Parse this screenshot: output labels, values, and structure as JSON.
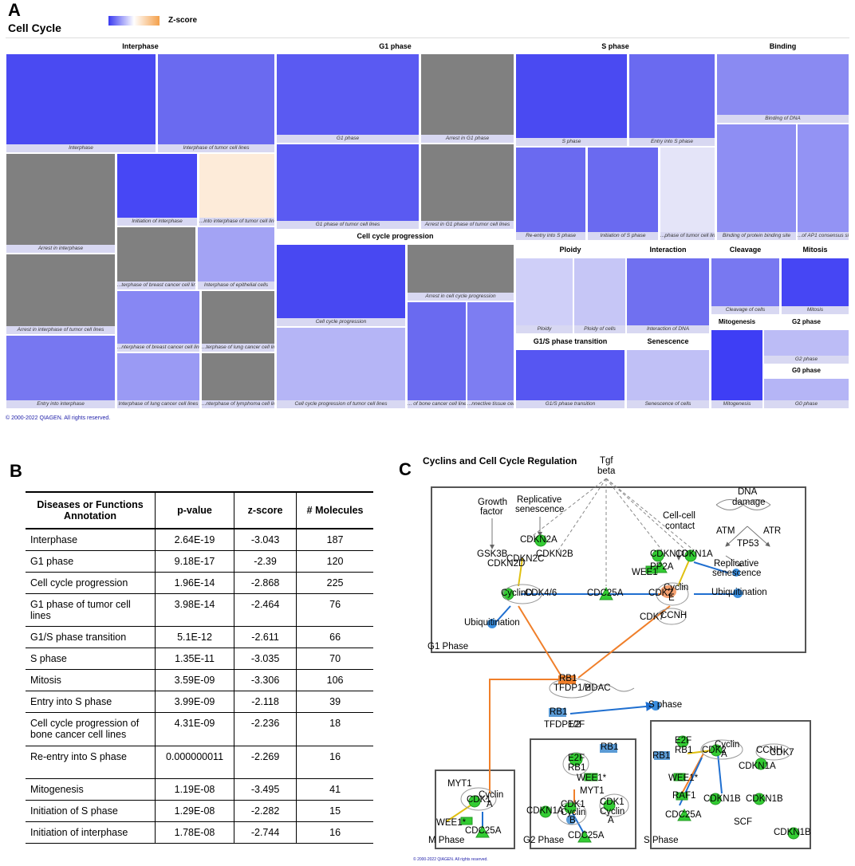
{
  "panel_a": {
    "letter": "A",
    "title": "Cell Cycle",
    "legend_label": "Z-score",
    "copyright": "© 2000-2022 QIAGEN. All rights reserved.",
    "categories": {
      "interphase": "Interphase",
      "g1": "G1 phase",
      "s": "S phase",
      "binding": "Binding",
      "ccp": "Cell cycle progression",
      "ploidy": "Ploidy",
      "interaction": "Interaction",
      "cleavage": "Cleavage",
      "mitosis": "Mitosis",
      "mitogenesis": "Mitogenesis",
      "g2": "G2 phase",
      "g0": "G0 phase",
      "g1s": "G1/S phase transition",
      "senescence": "Senescence"
    },
    "tiles": [
      {
        "label": "Interphase",
        "color": "#4a4af2"
      },
      {
        "label": "Interphase of tumor cell lines",
        "color": "#6a6af0"
      },
      {
        "label": "Arrest in interphase",
        "color": "#808080"
      },
      {
        "label": "Initiation of interphase",
        "color": "#4747f5"
      },
      {
        "label": "...into interphase of tumor cell line",
        "color": "#fdebd9"
      },
      {
        "label": "...terphase of breast cancer cell line",
        "color": "#808080"
      },
      {
        "label": "Interphase of epithelial cells",
        "color": "#a3a3f4"
      },
      {
        "label": "Arrest in interphase of tumor cell lines",
        "color": "#808080"
      },
      {
        "label": "...nterphase of breast cancer cell line",
        "color": "#8787f3"
      },
      {
        "label": "...terphase of lung cancer cell line",
        "color": "#808080"
      },
      {
        "label": "Entry into interphase",
        "color": "#7777f1"
      },
      {
        "label": "Interphase of lung cancer cell lines",
        "color": "#9a9af4"
      },
      {
        "label": "...nterphase of lymphoma cell line",
        "color": "#808080"
      },
      {
        "label": "G1 phase",
        "color": "#5a5af2"
      },
      {
        "label": "Arrest in G1 phase",
        "color": "#808080"
      },
      {
        "label": "G1 phase of tumor cell lines",
        "color": "#5a5af2"
      },
      {
        "label": "Arrest in G1 phase of tumor cell lines",
        "color": "#808080"
      },
      {
        "label": "Cell cycle progression",
        "color": "#4848f2"
      },
      {
        "label": "Arrest in cell cycle progression",
        "color": "#808080"
      },
      {
        "label": "Cell cycle progression of tumor cell lines",
        "color": "#b5b5f6"
      },
      {
        "label": "... of bone cancer cell line",
        "color": "#6a6af0"
      },
      {
        "label": "...nnective tissue cell",
        "color": "#7d7df2"
      },
      {
        "label": "S phase",
        "color": "#4a4af2"
      },
      {
        "label": "Entry into S phase",
        "color": "#6a6af0"
      },
      {
        "label": "Re-entry into S phase",
        "color": "#6a6af0"
      },
      {
        "label": "Initiation of S phase",
        "color": "#6a6af0"
      },
      {
        "label": "...phase of tumor cell line",
        "color": "#e4e4f8"
      },
      {
        "label": "Binding of DNA",
        "color": "#8a8af2"
      },
      {
        "label": "Binding of protein binding site",
        "color": "#8e8ef3"
      },
      {
        "label": "...of AP1 consensus sit",
        "color": "#9393f4"
      },
      {
        "label": "Ploidy",
        "color": "#cfcff8"
      },
      {
        "label": "Ploidy of cells",
        "color": "#c6c6f6"
      },
      {
        "label": "Interaction of DNA",
        "color": "#7070f0"
      },
      {
        "label": "Cleavage of cells",
        "color": "#7878f1"
      },
      {
        "label": "Mitosis",
        "color": "#4646f4"
      },
      {
        "label": "Mitogenesis",
        "color": "#3e3ef5"
      },
      {
        "label": "G2 phase",
        "color": "#bcbcf6"
      },
      {
        "label": "G0 phase",
        "color": "#b5b5f6"
      },
      {
        "label": "G1/S phase transition",
        "color": "#5656f2"
      },
      {
        "label": "Senescence of cells",
        "color": "#c0c0f6"
      }
    ]
  },
  "panel_b": {
    "letter": "B",
    "headers": [
      "Diseases or Functions Annotation",
      "p-value",
      "z-score",
      "# Molecules"
    ],
    "rows": [
      {
        "name": "Interphase",
        "p": "2.64E-19",
        "z": "-3.043",
        "n": "187"
      },
      {
        "name": "G1 phase",
        "p": "9.18E-17",
        "z": "-2.39",
        "n": "120"
      },
      {
        "name": "Cell cycle progression",
        "p": "1.96E-14",
        "z": "-2.868",
        "n": "225"
      },
      {
        "name": "G1 phase of tumor cell lines",
        "p": "3.98E-14",
        "z": "-2.464",
        "n": "76"
      },
      {
        "name": "G1/S phase transition",
        "p": "5.1E-12",
        "z": "-2.611",
        "n": "66"
      },
      {
        "name": "S phase",
        "p": "1.35E-11",
        "z": "-3.035",
        "n": "70"
      },
      {
        "name": "Mitosis",
        "p": "3.59E-09",
        "z": "-3.306",
        "n": "106"
      },
      {
        "name": "Entry into S phase",
        "p": "3.99E-09",
        "z": "-2.118",
        "n": "39"
      },
      {
        "name": "Cell cycle progression of bone cancer cell lines",
        "p": "4.31E-09",
        "z": "-2.236",
        "n": "18"
      },
      {
        "name": "Re-entry into S phase",
        "p": "0.000000011",
        "z": "-2.269",
        "n": "16"
      },
      {
        "name": "Mitogenesis",
        "p": "1.19E-08",
        "z": "-3.495",
        "n": "41"
      },
      {
        "name": "Initiation of S phase",
        "p": "1.29E-08",
        "z": "-2.282",
        "n": "15"
      },
      {
        "name": "Initiation of interphase",
        "p": "1.78E-08",
        "z": "-2.744",
        "n": "16"
      }
    ]
  },
  "panel_c": {
    "letter": "C",
    "title": "Cyclins and Cell Cycle Regulation",
    "copyright": "© 2000-2022 QIAGEN. All rights reserved.",
    "labels": {
      "tgf": "Tgf",
      "beta": "beta",
      "growth": "Growth",
      "factor": "factor",
      "replicative": "Replicative",
      "senescence": "senescence",
      "dna": "DNA",
      "damage": "damage",
      "cellcell": "Cell-cell",
      "contact": "contact",
      "atm": "ATM",
      "atr": "ATR",
      "tp53": "TP53",
      "cdkn2a": "CDKN2A",
      "gsk3b": "GSK3B",
      "cdkn2d": "CDKN2D",
      "cdkn2c": "CDKN2C",
      "cdkn2b": "CDKN2B",
      "cdkn1c": "CDKN1C",
      "cdkn1a": "CDKN1A",
      "wee1": "WEE1",
      "pp2a": "PP2A",
      "rep_sen": "Replicative",
      "rep_sen2": "senescence",
      "cyclind": "CyclinD",
      "cdk46": "CDK4/6",
      "cdc25a": "CDC25A",
      "cdk2": "CDK2",
      "cyclin": "Cyclin",
      "e": "E",
      "ubiq": "Ubiquitination",
      "ubiq2": "Ubiquitination",
      "cdk7": "CDK7",
      "ccnh": "CCNH",
      "g1phase": "G1 Phase",
      "rb1": "RB1",
      "tfdp12": "TFDP1/2",
      "hdac": "HDAC",
      "rb1b": "RB1",
      "tfdp12b": "TFDP1/2",
      "e2f": "E2F",
      "sphase_arrow": "S phase",
      "rb1c": "RB1",
      "e2f_g2": "E2F",
      "rb1_g2": "RB1",
      "wee1_g2": "WEE1*",
      "myt1_g2": "MYT1",
      "cdkn1a_g2": "CDKN1A",
      "cdk1_g2": "CDK1",
      "cyclinb_g2": "Cyclin",
      "b_g2": "B",
      "cdk1b_g2": "CDK1",
      "cyclin_g2b": "Cyclin",
      "a_g2": "A",
      "cdc25a_g2": "CDC25A",
      "g2phase": "G2 Phase",
      "myt1_m": "MYT1",
      "cdk_m": "CDK1",
      "cyclin_m": "Cyclin",
      "a_m": "A",
      "wee1_m": "WEE1*",
      "cdc25a_m": "CDC25A",
      "mphase": "M Phase",
      "e2f_s": "E2F",
      "rb1_s": "RB1",
      "rb1_s2": "RB1",
      "cdk2_s": "CDK2",
      "cyclin_s": "Cyclin",
      "a_s": "A",
      "ccnh_s": "CCNH",
      "cdk7_s": "CDK7",
      "wee1_s": "WEE1*",
      "cdkn1a_s": "CDKN1A",
      "raf1": "RAF1",
      "cdkn1b_s": "CDKN1B",
      "cdkn1b_s2": "CDKN1B",
      "cdc25a_s": "CDC25A",
      "scf": "SCF",
      "cdkn1b_s3": "CDKN1B",
      "sphase": "S Phase"
    }
  },
  "colors": {
    "blue": "#4040f5",
    "gray": "#808080",
    "green": "#33cc33",
    "orange": "#f07f2a",
    "nodeblue": "#5b9bd5",
    "edgeblue": "#1f6fd0"
  }
}
